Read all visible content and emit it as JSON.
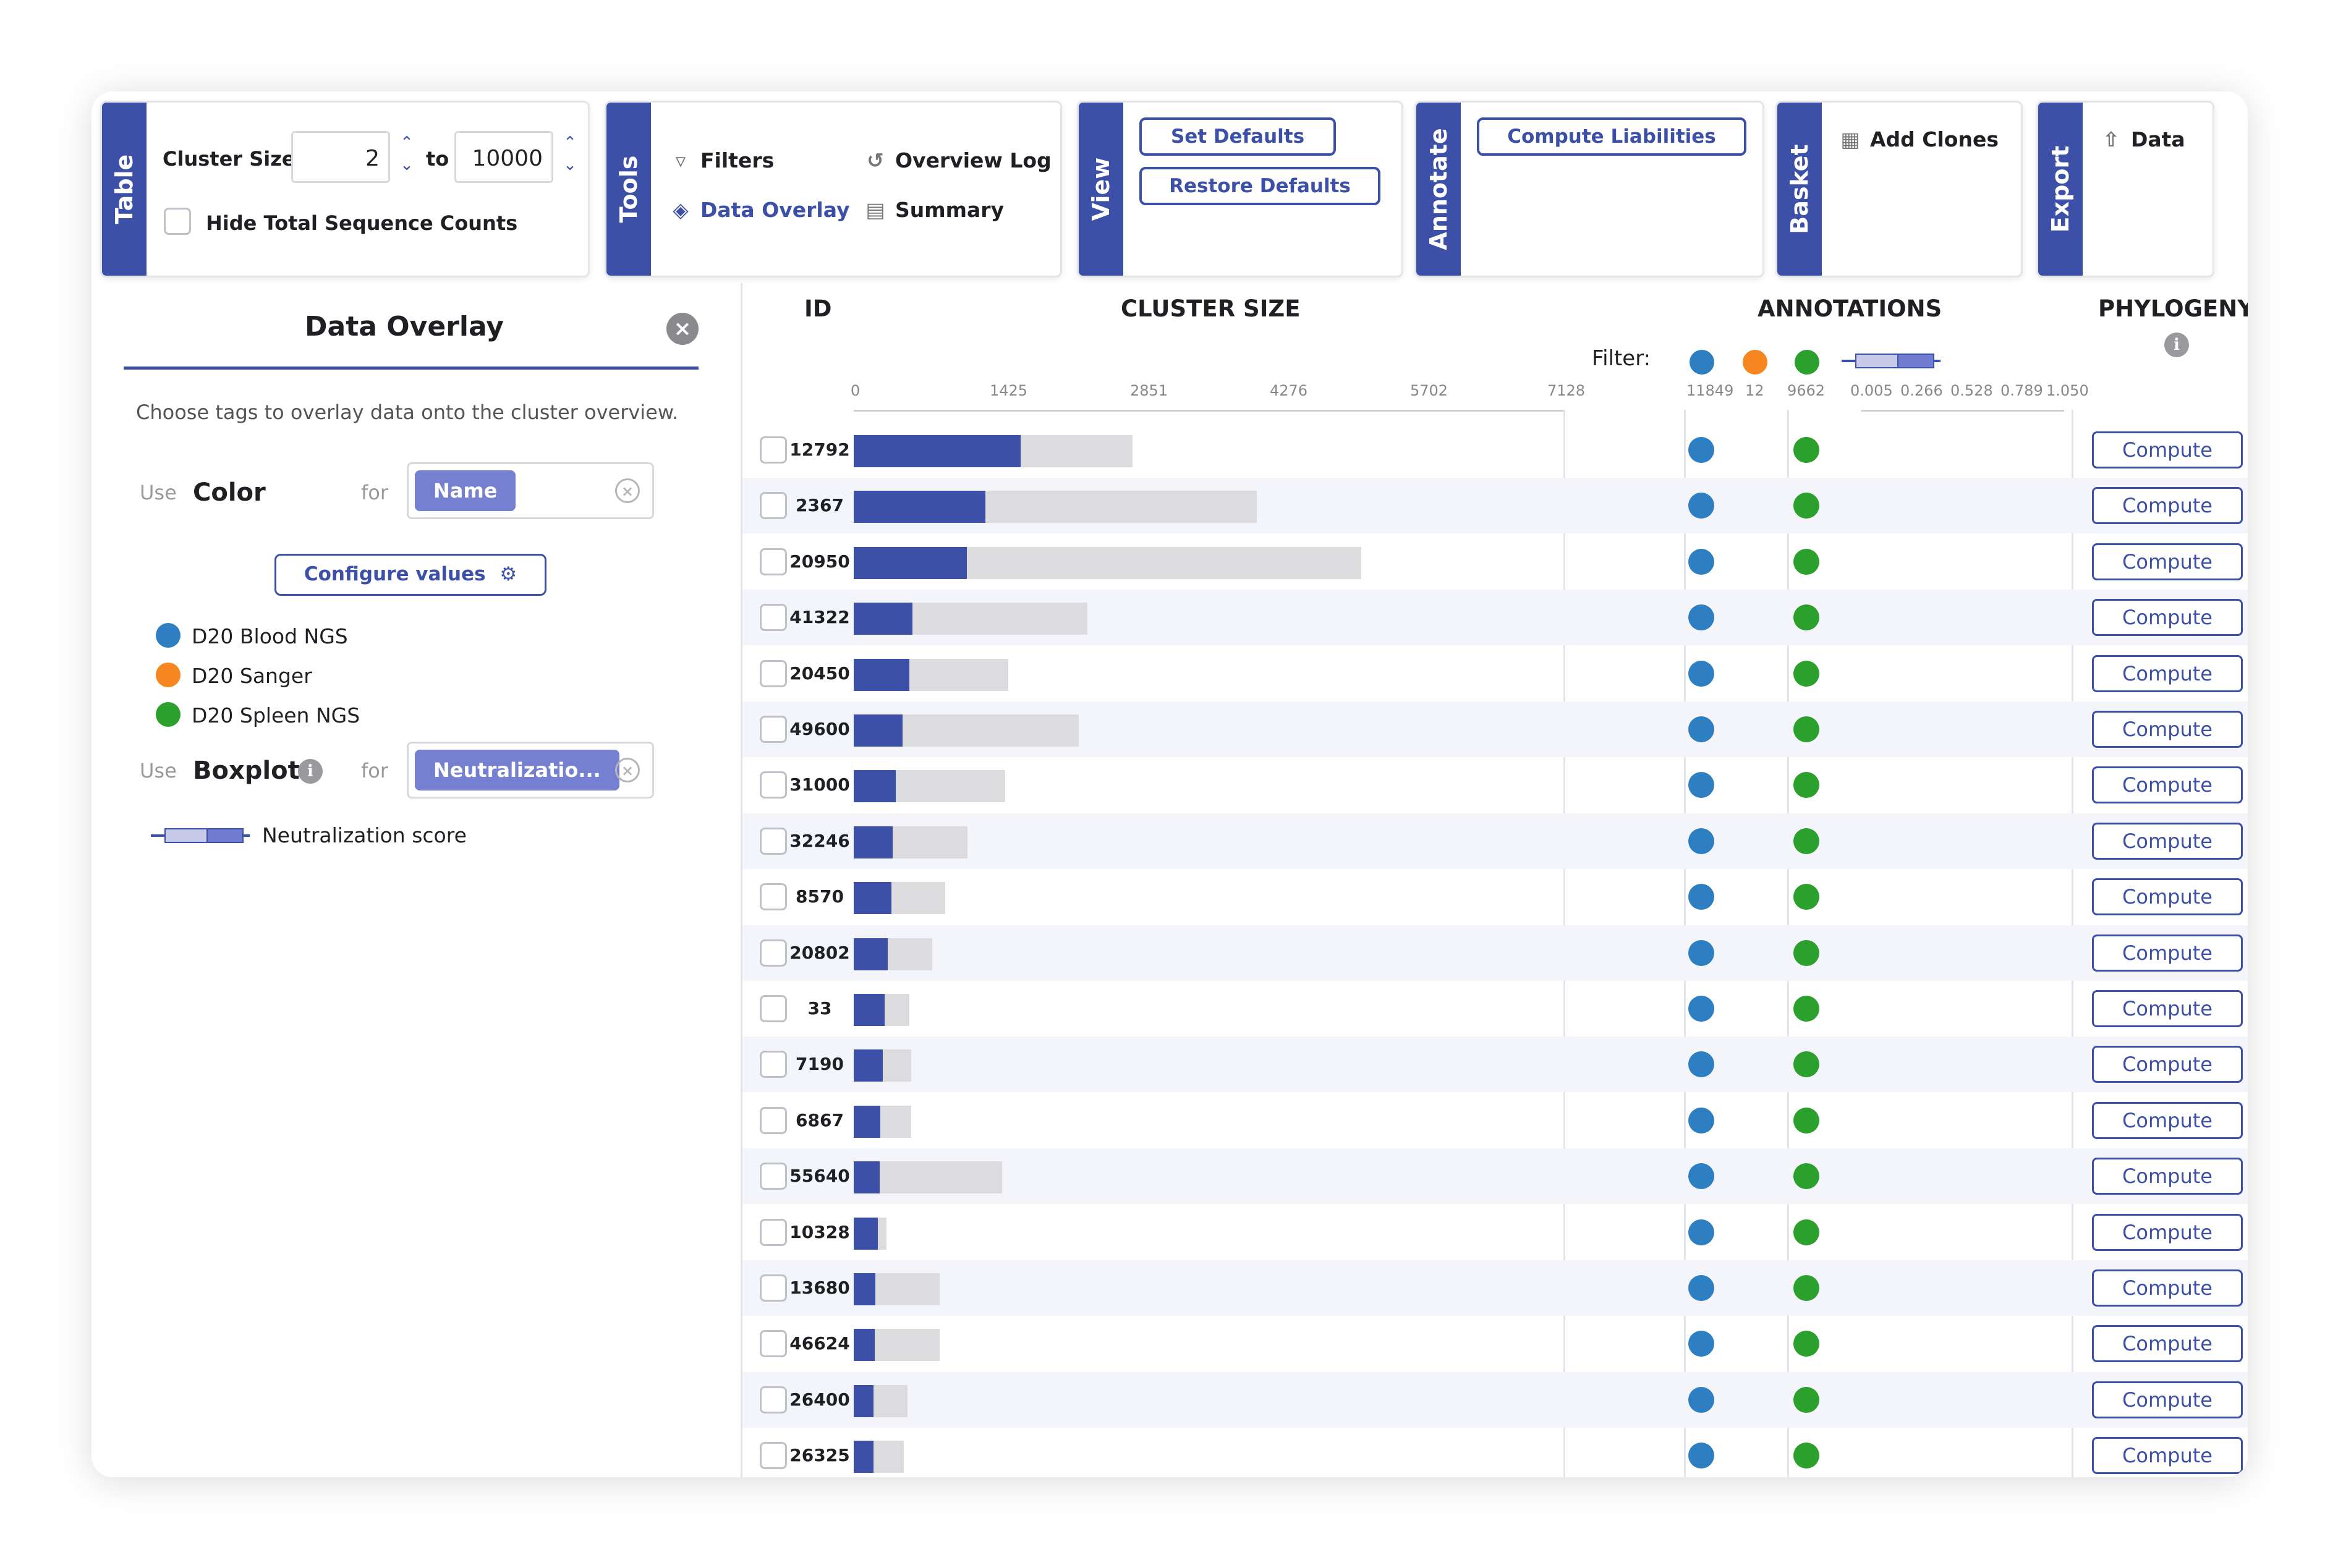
{
  "toolbar": {
    "table": {
      "tab": "Table",
      "cluster_size_label": "Cluster Size",
      "min_value": "2",
      "to_label": "to",
      "max_value": "10000",
      "hide_counts_label": "Hide Total Sequence Counts"
    },
    "tools": {
      "tab": "Tools",
      "filters": "Filters",
      "overview_log": "Overview Log",
      "data_overlay": "Data Overlay",
      "summary": "Summary"
    },
    "view": {
      "tab": "View",
      "set_defaults": "Set Defaults",
      "restore_defaults": "Restore Defaults"
    },
    "annotate": {
      "tab": "Annotate",
      "compute_liabilities": "Compute Liabilities"
    },
    "basket": {
      "tab": "Basket",
      "add_clones": "Add Clones"
    },
    "export": {
      "tab": "Export",
      "data": "Data"
    }
  },
  "overlay_panel": {
    "title": "Data Overlay",
    "description": "Choose tags to overlay data onto the cluster overview.",
    "use_label": "Use",
    "for_label": "for",
    "color_label": "Color",
    "color_tag": "Name",
    "configure_values": "Configure values",
    "legend": [
      {
        "label": "D20 Blood NGS",
        "color": "#2d7fc1"
      },
      {
        "label": "D20 Sanger",
        "color": "#f6861f"
      },
      {
        "label": "D20 Spleen NGS",
        "color": "#2ca02c"
      }
    ],
    "boxplot_label": "Boxplot",
    "boxplot_tag": "Neutralizatio...",
    "boxplot_legend": "Neutralization score"
  },
  "table": {
    "headers": {
      "id": "ID",
      "cluster_size": "CLUSTER SIZE",
      "annotations": "ANNOTATIONS",
      "phylogeny": "PHYLOGENY"
    },
    "filter_label": "Filter:",
    "size_ticks": [
      "0",
      "1425",
      "2851",
      "4276",
      "5702",
      "7128"
    ],
    "annotation_counts": [
      "11849",
      "12",
      "9662"
    ],
    "boxplot_ticks": [
      "0.005",
      "0.266",
      "0.528",
      "0.789",
      "1.050"
    ],
    "compute_label": "Compute",
    "axis_max": 7128,
    "rows": [
      {
        "id": "12792",
        "fg": 1675,
        "bg": 2800
      },
      {
        "id": "2367",
        "fg": 1320,
        "bg": 4050
      },
      {
        "id": "20950",
        "fg": 1135,
        "bg": 5100
      },
      {
        "id": "41322",
        "fg": 590,
        "bg": 2350
      },
      {
        "id": "20450",
        "fg": 560,
        "bg": 1550
      },
      {
        "id": "49600",
        "fg": 490,
        "bg": 2260
      },
      {
        "id": "31000",
        "fg": 420,
        "bg": 1520
      },
      {
        "id": "32246",
        "fg": 390,
        "bg": 1140
      },
      {
        "id": "8570",
        "fg": 380,
        "bg": 920
      },
      {
        "id": "20802",
        "fg": 340,
        "bg": 790
      },
      {
        "id": "33",
        "fg": 310,
        "bg": 560
      },
      {
        "id": "7190",
        "fg": 290,
        "bg": 580
      },
      {
        "id": "6867",
        "fg": 270,
        "bg": 580
      },
      {
        "id": "55640",
        "fg": 260,
        "bg": 1490
      },
      {
        "id": "10328",
        "fg": 240,
        "bg": 330
      },
      {
        "id": "13680",
        "fg": 220,
        "bg": 860
      },
      {
        "id": "46624",
        "fg": 210,
        "bg": 860
      },
      {
        "id": "26400",
        "fg": 200,
        "bg": 540
      },
      {
        "id": "26325",
        "fg": 200,
        "bg": 500
      }
    ]
  },
  "colors": {
    "accent": "#3d50a8",
    "blood": "#2d7fc1",
    "sanger": "#f6861f",
    "spleen": "#2ca02c"
  }
}
